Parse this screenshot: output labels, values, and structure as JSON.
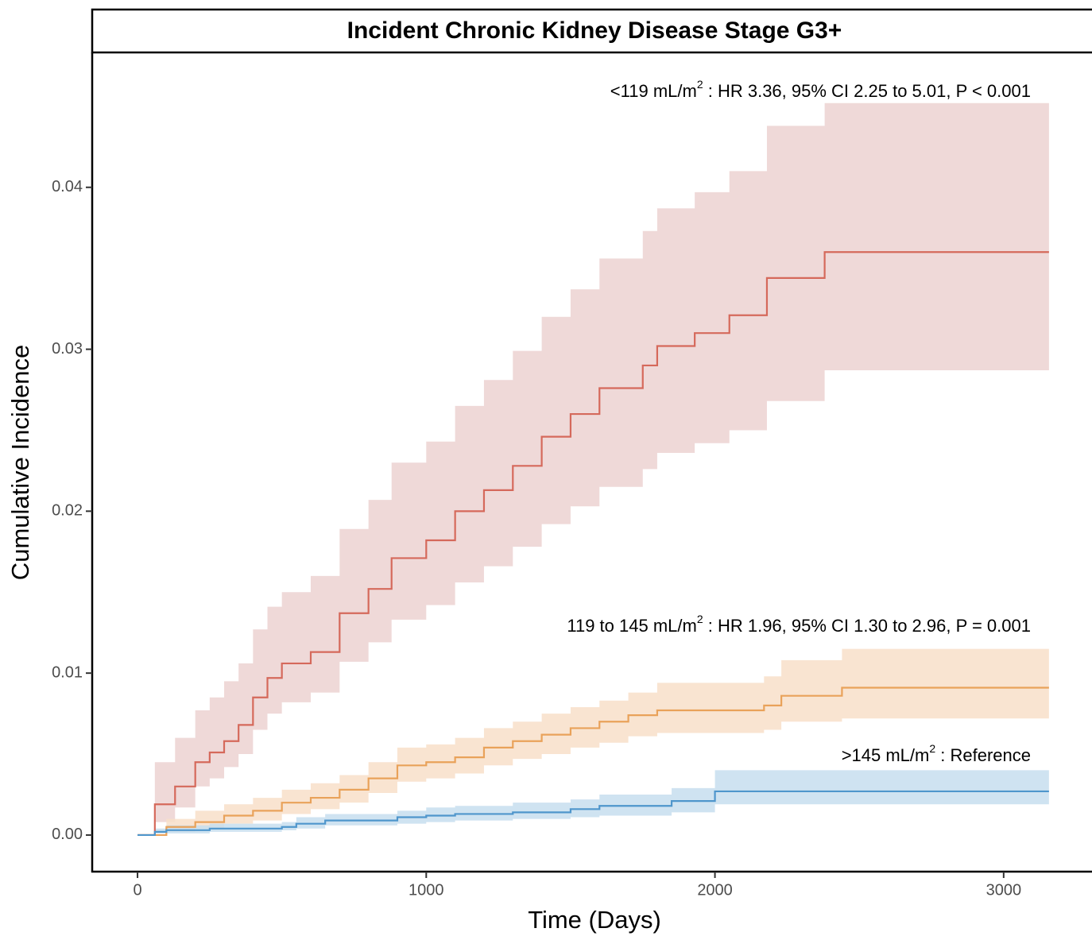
{
  "chart_data": {
    "type": "step",
    "title": "Incident Chronic Kidney Disease Stage G3+",
    "x_label": "Time (Days)",
    "y_label": "Cumulative Incidence",
    "xlim": [
      -157,
      3306
    ],
    "ylim": [
      -0.00226,
      0.04833
    ],
    "xticks": [
      0,
      1000,
      2000,
      3000
    ],
    "yticks": [
      {
        "value": 0,
        "label": "0.00"
      },
      0.01,
      0.02,
      0.03,
      0.04
    ],
    "grid": false,
    "annotations": [
      {
        "text": "<119 mL/m",
        "sup": "2",
        "rest": " : HR 3.36, 95% CI 2.25 to 5.01, P < 0.001"
      },
      {
        "text": "119 to 145 mL/m",
        "sup": "2",
        "rest": " : HR 1.96, 95% CI 1.30 to 2.96, P = 0.001"
      },
      {
        "text": ">145 mL/m",
        "sup": "2",
        "rest": " : Reference"
      }
    ],
    "series": [
      {
        "color": "#d5695b",
        "band_color": "#ecd2d1",
        "x": [
          0,
          60,
          130,
          200,
          250,
          300,
          350,
          400,
          450,
          500,
          600,
          700,
          800,
          880,
          1000,
          1100,
          1200,
          1300,
          1400,
          1500,
          1600,
          1750,
          1800,
          1930,
          2050,
          2180,
          2380,
          3157
        ],
        "values": [
          0,
          0.0019,
          0.003,
          0.0045,
          0.0051,
          0.0058,
          0.0068,
          0.0085,
          0.0097,
          0.0106,
          0.0113,
          0.0137,
          0.0152,
          0.0171,
          0.0182,
          0.02,
          0.0213,
          0.0228,
          0.0246,
          0.026,
          0.0276,
          0.029,
          0.0302,
          0.031,
          0.0321,
          0.0344,
          0.036,
          0.036
        ],
        "lower": [
          0,
          0.0008,
          0.0017,
          0.003,
          0.0035,
          0.0042,
          0.005,
          0.0065,
          0.0075,
          0.0082,
          0.0088,
          0.0107,
          0.0119,
          0.0133,
          0.0142,
          0.0156,
          0.0166,
          0.0178,
          0.0192,
          0.0203,
          0.0215,
          0.0226,
          0.0236,
          0.0242,
          0.025,
          0.0268,
          0.0287,
          0.0287
        ],
        "upper": [
          0,
          0.0045,
          0.006,
          0.0077,
          0.0085,
          0.0095,
          0.0106,
          0.0127,
          0.0141,
          0.015,
          0.016,
          0.0189,
          0.0207,
          0.023,
          0.0243,
          0.0265,
          0.0281,
          0.0299,
          0.032,
          0.0337,
          0.0356,
          0.0373,
          0.0387,
          0.0397,
          0.041,
          0.0438,
          0.0452,
          0.0452
        ]
      },
      {
        "color": "#e9a25a",
        "band_color": "#f8dfc9",
        "x": [
          0,
          100,
          200,
          300,
          400,
          500,
          600,
          700,
          800,
          900,
          1000,
          1100,
          1200,
          1300,
          1400,
          1500,
          1600,
          1700,
          1800,
          2000,
          2170,
          2230,
          2440,
          3157
        ],
        "values": [
          0,
          0.0005,
          0.0008,
          0.0012,
          0.0015,
          0.002,
          0.0023,
          0.0028,
          0.0035,
          0.0043,
          0.0045,
          0.0048,
          0.0054,
          0.0058,
          0.0062,
          0.0066,
          0.007,
          0.0074,
          0.0077,
          0.0077,
          0.008,
          0.0086,
          0.0091,
          0.0091
        ],
        "lower": [
          0,
          0.0002,
          0.0004,
          0.0007,
          0.0009,
          0.0013,
          0.0016,
          0.002,
          0.0026,
          0.0033,
          0.0035,
          0.0038,
          0.0043,
          0.0047,
          0.005,
          0.0054,
          0.0057,
          0.0061,
          0.0063,
          0.0063,
          0.0065,
          0.007,
          0.0072,
          0.0072
        ],
        "upper": [
          0,
          0.001,
          0.0015,
          0.0019,
          0.0023,
          0.0028,
          0.0032,
          0.0037,
          0.0045,
          0.0054,
          0.0056,
          0.006,
          0.0066,
          0.007,
          0.0075,
          0.0079,
          0.0083,
          0.0088,
          0.0094,
          0.0094,
          0.0098,
          0.0108,
          0.0115,
          0.0115
        ]
      },
      {
        "color": "#4f96cc",
        "band_color": "#c7deee",
        "x": [
          0,
          60,
          100,
          250,
          500,
          550,
          650,
          900,
          1000,
          1100,
          1300,
          1500,
          1600,
          1850,
          2000,
          3157
        ],
        "values": [
          0,
          0.0002,
          0.0003,
          0.0004,
          0.0005,
          0.0007,
          0.0009,
          0.0011,
          0.0012,
          0.0013,
          0.0014,
          0.0016,
          0.0018,
          0.0021,
          0.0027,
          0.0027
        ],
        "lower": [
          0,
          0.0001,
          0.0001,
          0.0002,
          0.0003,
          0.0004,
          0.0006,
          0.0007,
          0.0008,
          0.0009,
          0.001,
          0.0011,
          0.0012,
          0.0014,
          0.0019,
          0.0019
        ],
        "upper": [
          0,
          0.0004,
          0.0006,
          0.0007,
          0.0008,
          0.0011,
          0.0013,
          0.0015,
          0.0017,
          0.0018,
          0.002,
          0.0022,
          0.0025,
          0.0029,
          0.004,
          0.004
        ]
      }
    ]
  }
}
